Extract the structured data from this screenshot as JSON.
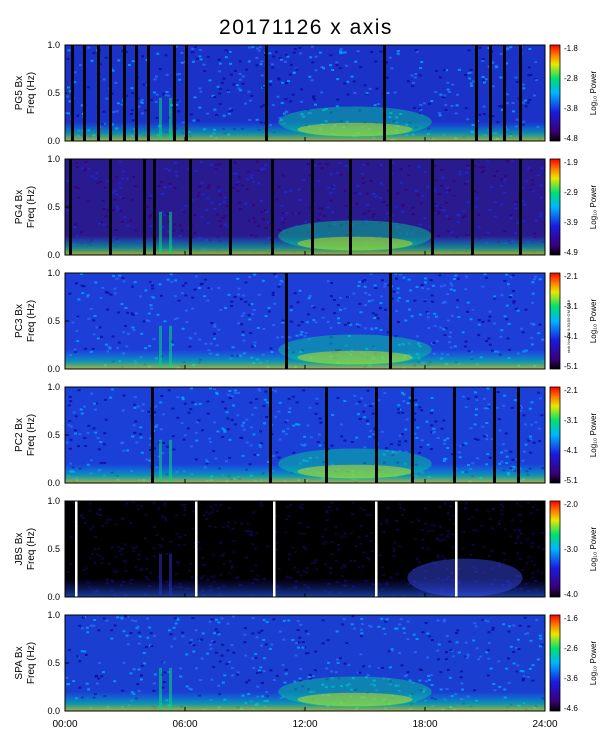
{
  "title": "20171126 x axis",
  "side_stamp": "nick Nov 29 9:30:59 GM 2018",
  "chart_data": {
    "type": "heatmap",
    "x_axis": {
      "range_hours": [
        0,
        24
      ],
      "tick_labels": [
        "00:00",
        "06:00",
        "12:00",
        "18:00",
        "24:00"
      ]
    },
    "colormap": [
      "#000000",
      "#3a0078",
      "#1a1ae0",
      "#00b4ff",
      "#00e070",
      "#e8e800",
      "#ff7800",
      "#ff0000"
    ],
    "panels": [
      {
        "id": "pg5",
        "ylabel_station": "PG5 Bx",
        "ylabel_unit": "Freq (Hz)",
        "ylim": [
          0,
          1
        ],
        "y_ticks": [
          "0.0",
          "0.5",
          "1.0"
        ],
        "colorbar_label": "Log₁₀ Power",
        "colorbar_ticks": [
          "-1.8",
          "-2.8",
          "-3.8",
          "-4.8"
        ],
        "background": "#1a32c8",
        "gaps_hours": [
          0.3,
          0.9,
          1.6,
          2.2,
          2.9,
          3.5,
          4.1,
          5.4,
          6.0,
          10.0,
          15.9,
          20.5,
          21.2,
          21.9,
          22.7
        ]
      },
      {
        "id": "pg4",
        "ylabel_station": "PG4 Bx",
        "ylabel_unit": "Freq (Hz)",
        "ylim": [
          0,
          1
        ],
        "y_ticks": [
          "0.0",
          "0.5",
          "1.0"
        ],
        "colorbar_label": "Log₁₀ Power",
        "colorbar_ticks": [
          "-1.9",
          "-2.9",
          "-3.9",
          "-4.9"
        ],
        "background": "#2a1a90",
        "gaps_hours": [
          0.2,
          2.2,
          3.9,
          4.4,
          6.2,
          8.2,
          10.3,
          12.3,
          14.2,
          16.2,
          18.3,
          20.3,
          22.7
        ]
      },
      {
        "id": "pc3",
        "ylabel_station": "PC3 Bx",
        "ylabel_unit": "Freq (Hz)",
        "ylim": [
          0,
          1
        ],
        "y_ticks": [
          "0.0",
          "0.5",
          "1.0"
        ],
        "colorbar_label": "Log₁₀ Power",
        "colorbar_ticks": [
          "-2.1",
          "-3.1",
          "-4.1",
          "-5.1"
        ],
        "background": "#1e3ed8",
        "gaps_hours": [
          11.0,
          16.2
        ]
      },
      {
        "id": "pc2",
        "ylabel_station": "PC2 Bx",
        "ylabel_unit": "Freq (Hz)",
        "ylim": [
          0,
          1
        ],
        "y_ticks": [
          "0.0",
          "0.5",
          "1.0"
        ],
        "colorbar_label": "Log₁₀ Power",
        "colorbar_ticks": [
          "-2.1",
          "-3.1",
          "-4.1",
          "-5.1"
        ],
        "background": "#1a40d8",
        "gaps_hours": [
          4.3,
          10.2,
          13.0,
          15.5,
          17.3,
          19.4,
          21.4,
          22.6
        ]
      },
      {
        "id": "jbs",
        "ylabel_station": "JBS Bx",
        "ylabel_unit": "Freq (Hz)",
        "ylim": [
          0,
          1
        ],
        "y_ticks": [
          "0.0",
          "0.5",
          "1.0"
        ],
        "colorbar_label": "Log₁₀ Power",
        "colorbar_ticks": [
          "-2.0",
          "-3.0",
          "-4.0"
        ],
        "background": "#000000",
        "white_gaps_hours": [
          0.5,
          6.5,
          10.4,
          15.5,
          19.5
        ]
      },
      {
        "id": "spa",
        "ylabel_station": "SPA Bx",
        "ylabel_unit": "Freq (Hz)",
        "ylim": [
          0,
          1
        ],
        "y_ticks": [
          "0.0",
          "0.5",
          "1.0"
        ],
        "colorbar_label": "Log₁₀ Power",
        "colorbar_ticks": [
          "-1.6",
          "-2.6",
          "-3.6",
          "-4.6"
        ],
        "background": "#1a3ed0",
        "gaps_hours": []
      }
    ]
  }
}
